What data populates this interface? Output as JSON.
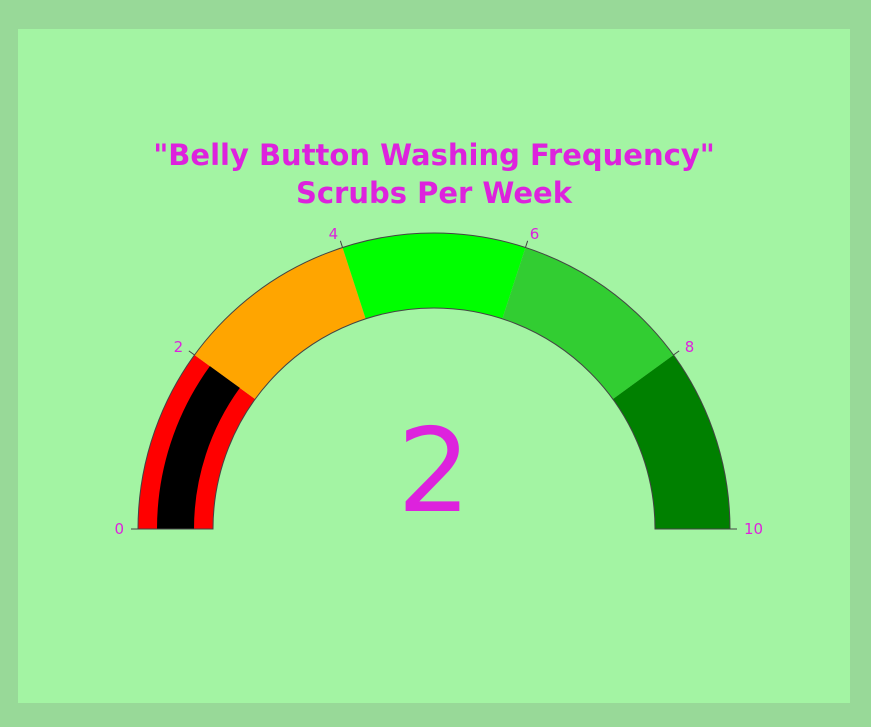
{
  "chart_data": {
    "type": "gauge",
    "title_lines": [
      "\"Belly Button Washing Frequency\"",
      "Scrubs Per Week"
    ],
    "value": 2,
    "value_label": "2",
    "range": [
      0,
      10
    ],
    "ticks": [
      {
        "value": 0,
        "label": "0"
      },
      {
        "value": 2,
        "label": "2"
      },
      {
        "value": 4,
        "label": "4"
      },
      {
        "value": 6,
        "label": "6"
      },
      {
        "value": 8,
        "label": "8"
      },
      {
        "value": 10,
        "label": "10"
      }
    ],
    "steps": [
      {
        "range": [
          0,
          2
        ],
        "color": "#ff0000"
      },
      {
        "range": [
          2,
          4
        ],
        "color": "#ffa500"
      },
      {
        "range": [
          4,
          6
        ],
        "color": "#00ff00"
      },
      {
        "range": [
          6,
          8
        ],
        "color": "#32cd32"
      },
      {
        "range": [
          8,
          10
        ],
        "color": "#008000"
      }
    ],
    "bar_color": "#000000",
    "text_color": "#dd22dd",
    "paper_color": "#98d998",
    "plot_color": "#a3f4a3"
  }
}
